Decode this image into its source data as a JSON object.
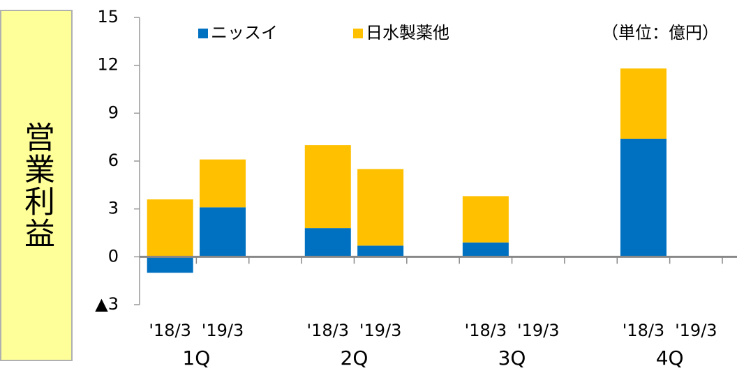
{
  "chart_data": {
    "type": "stacked_bar",
    "y_label": "営業利益",
    "unit_note": "（単位：億円）",
    "categories": [
      "'18/3",
      "'19/3",
      null,
      "'18/3",
      "'19/3",
      null,
      "'18/3",
      "'19/3",
      null,
      "'18/3",
      "'19/3"
    ],
    "groups": [
      "1Q",
      "2Q",
      "3Q",
      "4Q"
    ],
    "series": [
      {
        "name": "ニッスイ",
        "color": "#0070c0",
        "values": [
          -1.0,
          3.1,
          null,
          1.8,
          0.7,
          null,
          0.9,
          null,
          null,
          7.4,
          null
        ]
      },
      {
        "name": "日水製薬他",
        "color": "#ffc000",
        "values": [
          3.6,
          3.0,
          null,
          5.2,
          4.8,
          null,
          2.9,
          null,
          null,
          4.4,
          null
        ]
      }
    ],
    "ylim": [
      -3,
      15
    ],
    "yticks": [
      {
        "value": -3,
        "label": "▲3"
      },
      0,
      3,
      6,
      9,
      12,
      15
    ],
    "legend": "top",
    "grid": false
  }
}
